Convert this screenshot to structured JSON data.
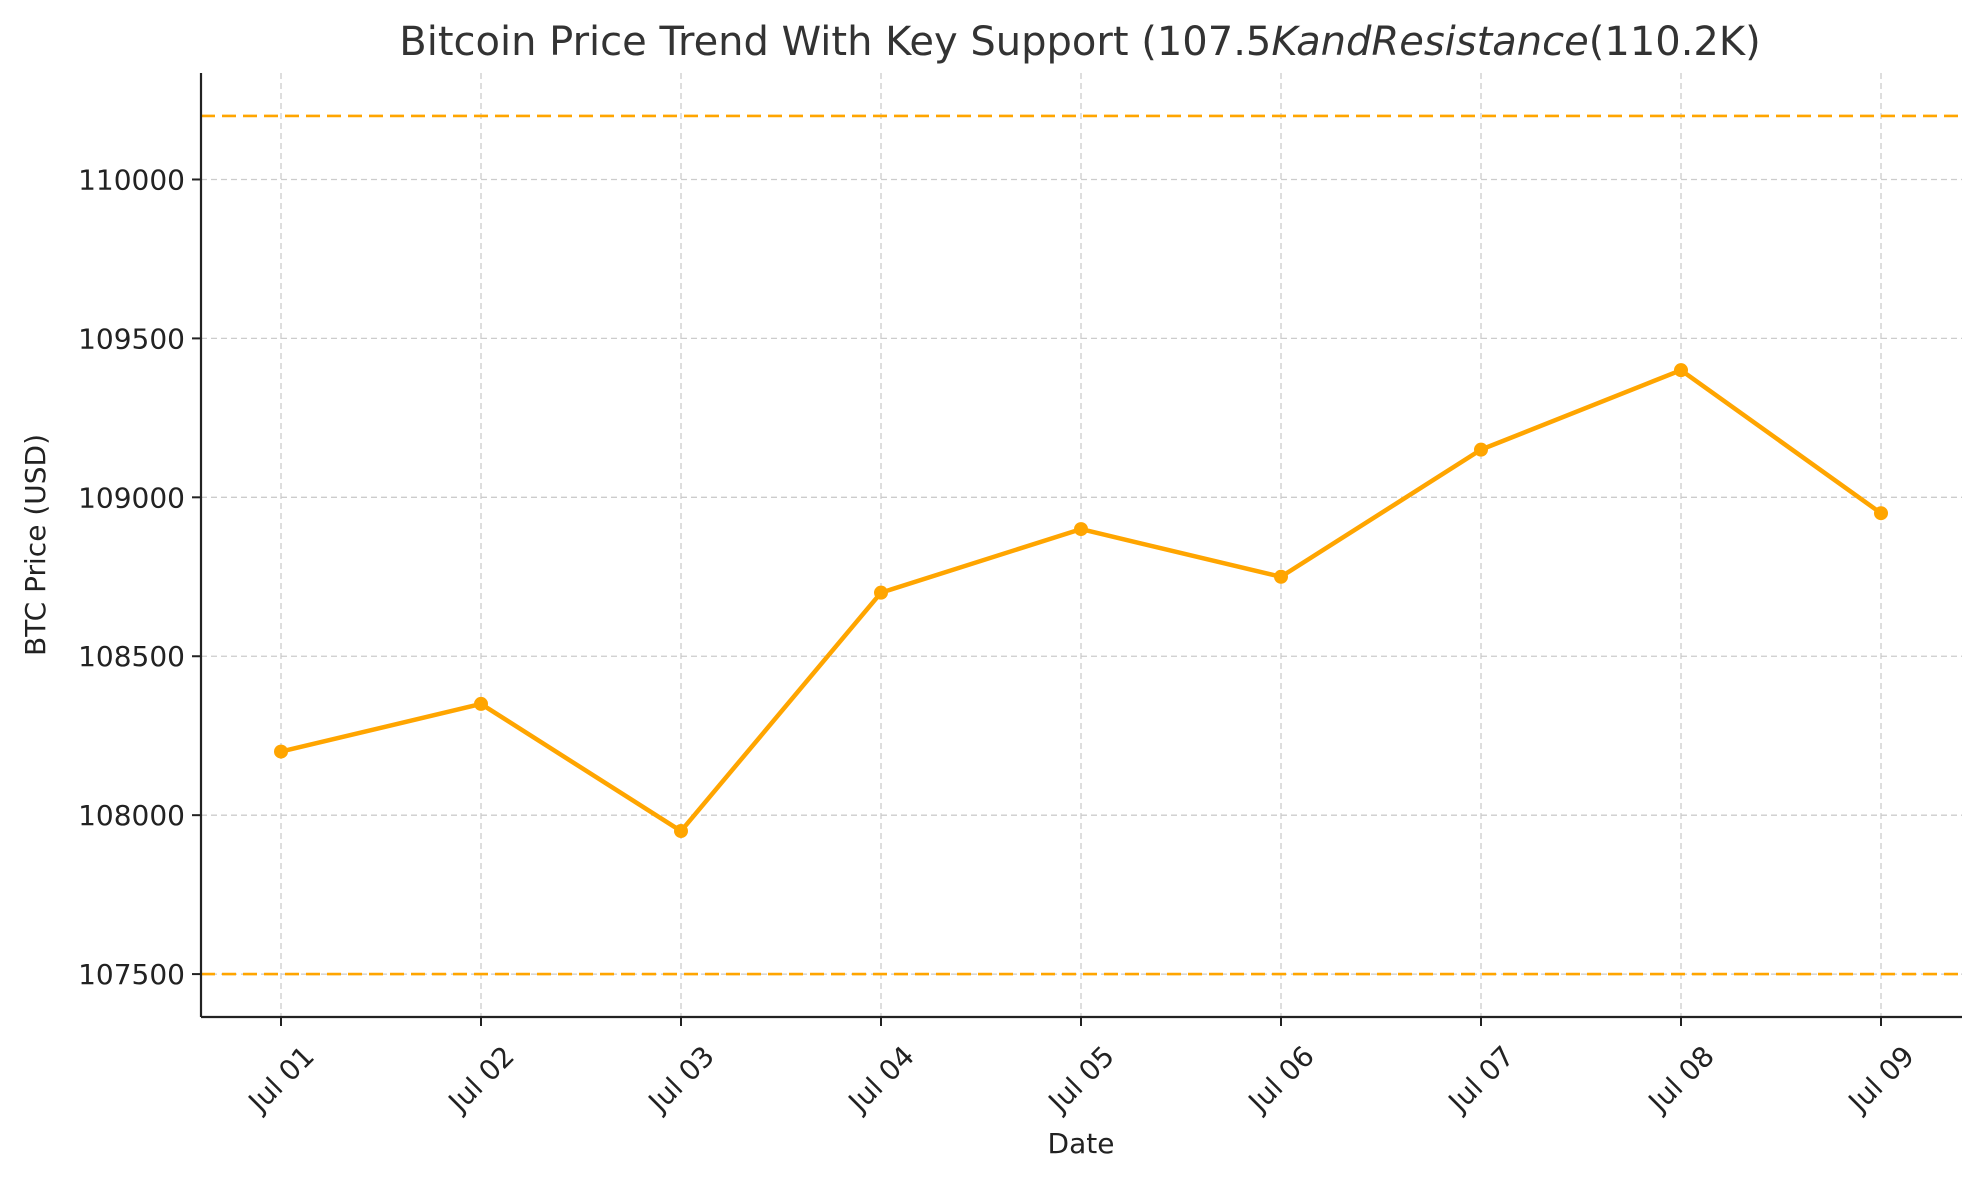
{
  "chart_data": {
    "type": "line",
    "title": "Bitcoin Price Trend With Key Support (107.5",
    "title_italic": "KandResistance",
    "title_end": "(110.2K)",
    "xlabel": "Date",
    "ylabel": "BTC Price (USD)",
    "categories": [
      "Jul 01",
      "Jul 02",
      "Jul 03",
      "Jul 04",
      "Jul 05",
      "Jul 06",
      "Jul 07",
      "Jul 08",
      "Jul 09"
    ],
    "series": [
      {
        "values": [
          108200,
          108350,
          107950,
          108700,
          108900,
          108750,
          109150,
          109400,
          108950
        ],
        "color": "#FFA500"
      }
    ],
    "reference_lines": [
      {
        "value": 110200,
        "color": "#FFA500",
        "style": "dashed"
      },
      {
        "value": 107500,
        "color": "#FFA500",
        "style": "dashed"
      }
    ],
    "yticks": [
      107500,
      108000,
      108500,
      109000,
      109500,
      110000
    ],
    "ylim": [
      107365,
      110335
    ],
    "grid": true,
    "line_color": "#FFA500",
    "x_tick_rotation_deg": 45
  }
}
